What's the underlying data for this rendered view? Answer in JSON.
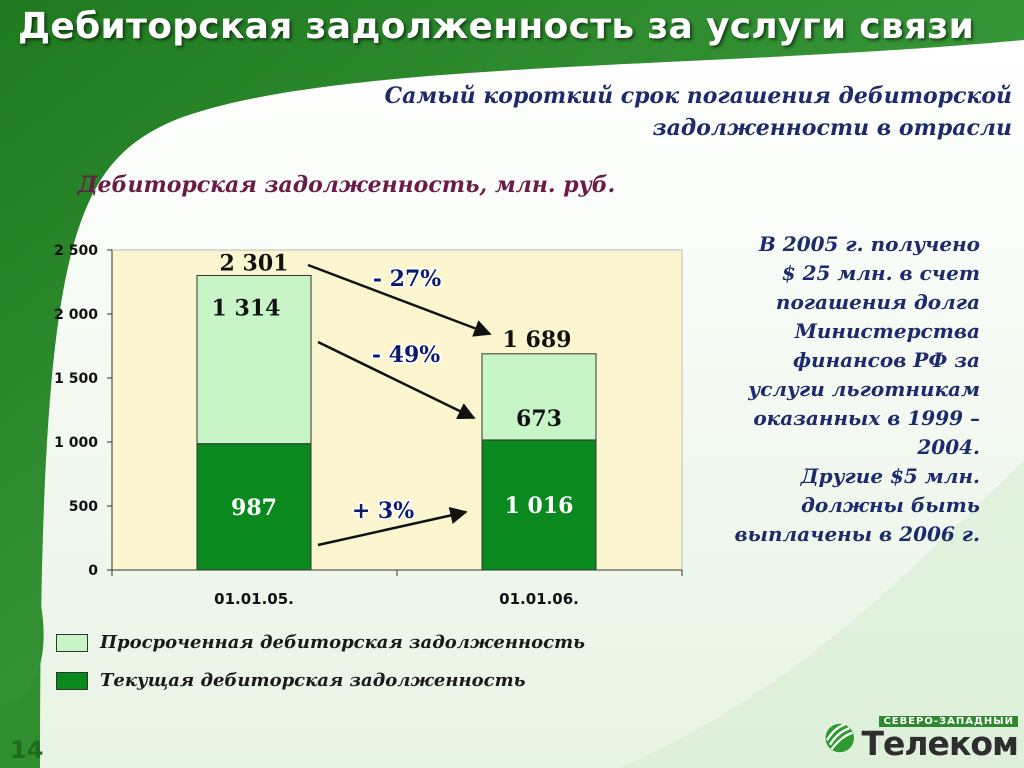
{
  "slide": {
    "title": "Дебиторская задолженность за услуги связи",
    "subtitle_line1": "Самый короткий срок погашения дебиторской",
    "subtitle_line2": "задолженности в отрасли",
    "page_number": "14"
  },
  "note": {
    "lines": [
      "В 2005 г. получено",
      "$ 25 млн. в счет",
      "погашения долга",
      "Министерства",
      "финансов РФ за",
      "услуги льготникам",
      "оказанных в 1999 –",
      "2004.",
      "Другие $5 млн.",
      "должны быть",
      "выплачены в 2006 г."
    ]
  },
  "logo": {
    "small": "СЕВЕРО-ЗАПАДНЫЙ",
    "big": "Телеком"
  },
  "colors": {
    "current": "#0a8a1e",
    "overdue": "#c8f5c8",
    "plot_bg": "#fbf6cf",
    "green_bg": "#2f8f2f",
    "text_blue": "#1d2a6b"
  },
  "chart_data": {
    "type": "bar",
    "stacked": true,
    "title": "Дебиторская задолженность, млн. руб.",
    "categories": [
      "01.01.05.",
      "01.01.06."
    ],
    "series": [
      {
        "name": "Текущая дебиторская задолженность",
        "values": [
          987,
          1016
        ],
        "labels": [
          "987",
          "1 016"
        ],
        "color": "#0a8a1e"
      },
      {
        "name": "Просроченная дебиторская задолженность",
        "values": [
          1314,
          673
        ],
        "labels": [
          "1 314",
          "673"
        ],
        "color": "#c8f5c8"
      }
    ],
    "totals": [
      2301,
      1689
    ],
    "total_labels": [
      "2 301",
      "1 689"
    ],
    "ylim": [
      0,
      2500
    ],
    "yticks": [
      0,
      500,
      1000,
      1500,
      2000,
      2500
    ],
    "ytick_labels": [
      "0",
      "500",
      "1 000",
      "1 500",
      "2 000",
      "2 500"
    ],
    "annotations": [
      {
        "text": "- 27%",
        "from": "total",
        "to": "total"
      },
      {
        "text": "- 49%",
        "from": "overdue",
        "to": "overdue"
      },
      {
        "text": "+ 3%",
        "from": "current",
        "to": "current"
      }
    ],
    "legend_position": "bottom-left"
  }
}
